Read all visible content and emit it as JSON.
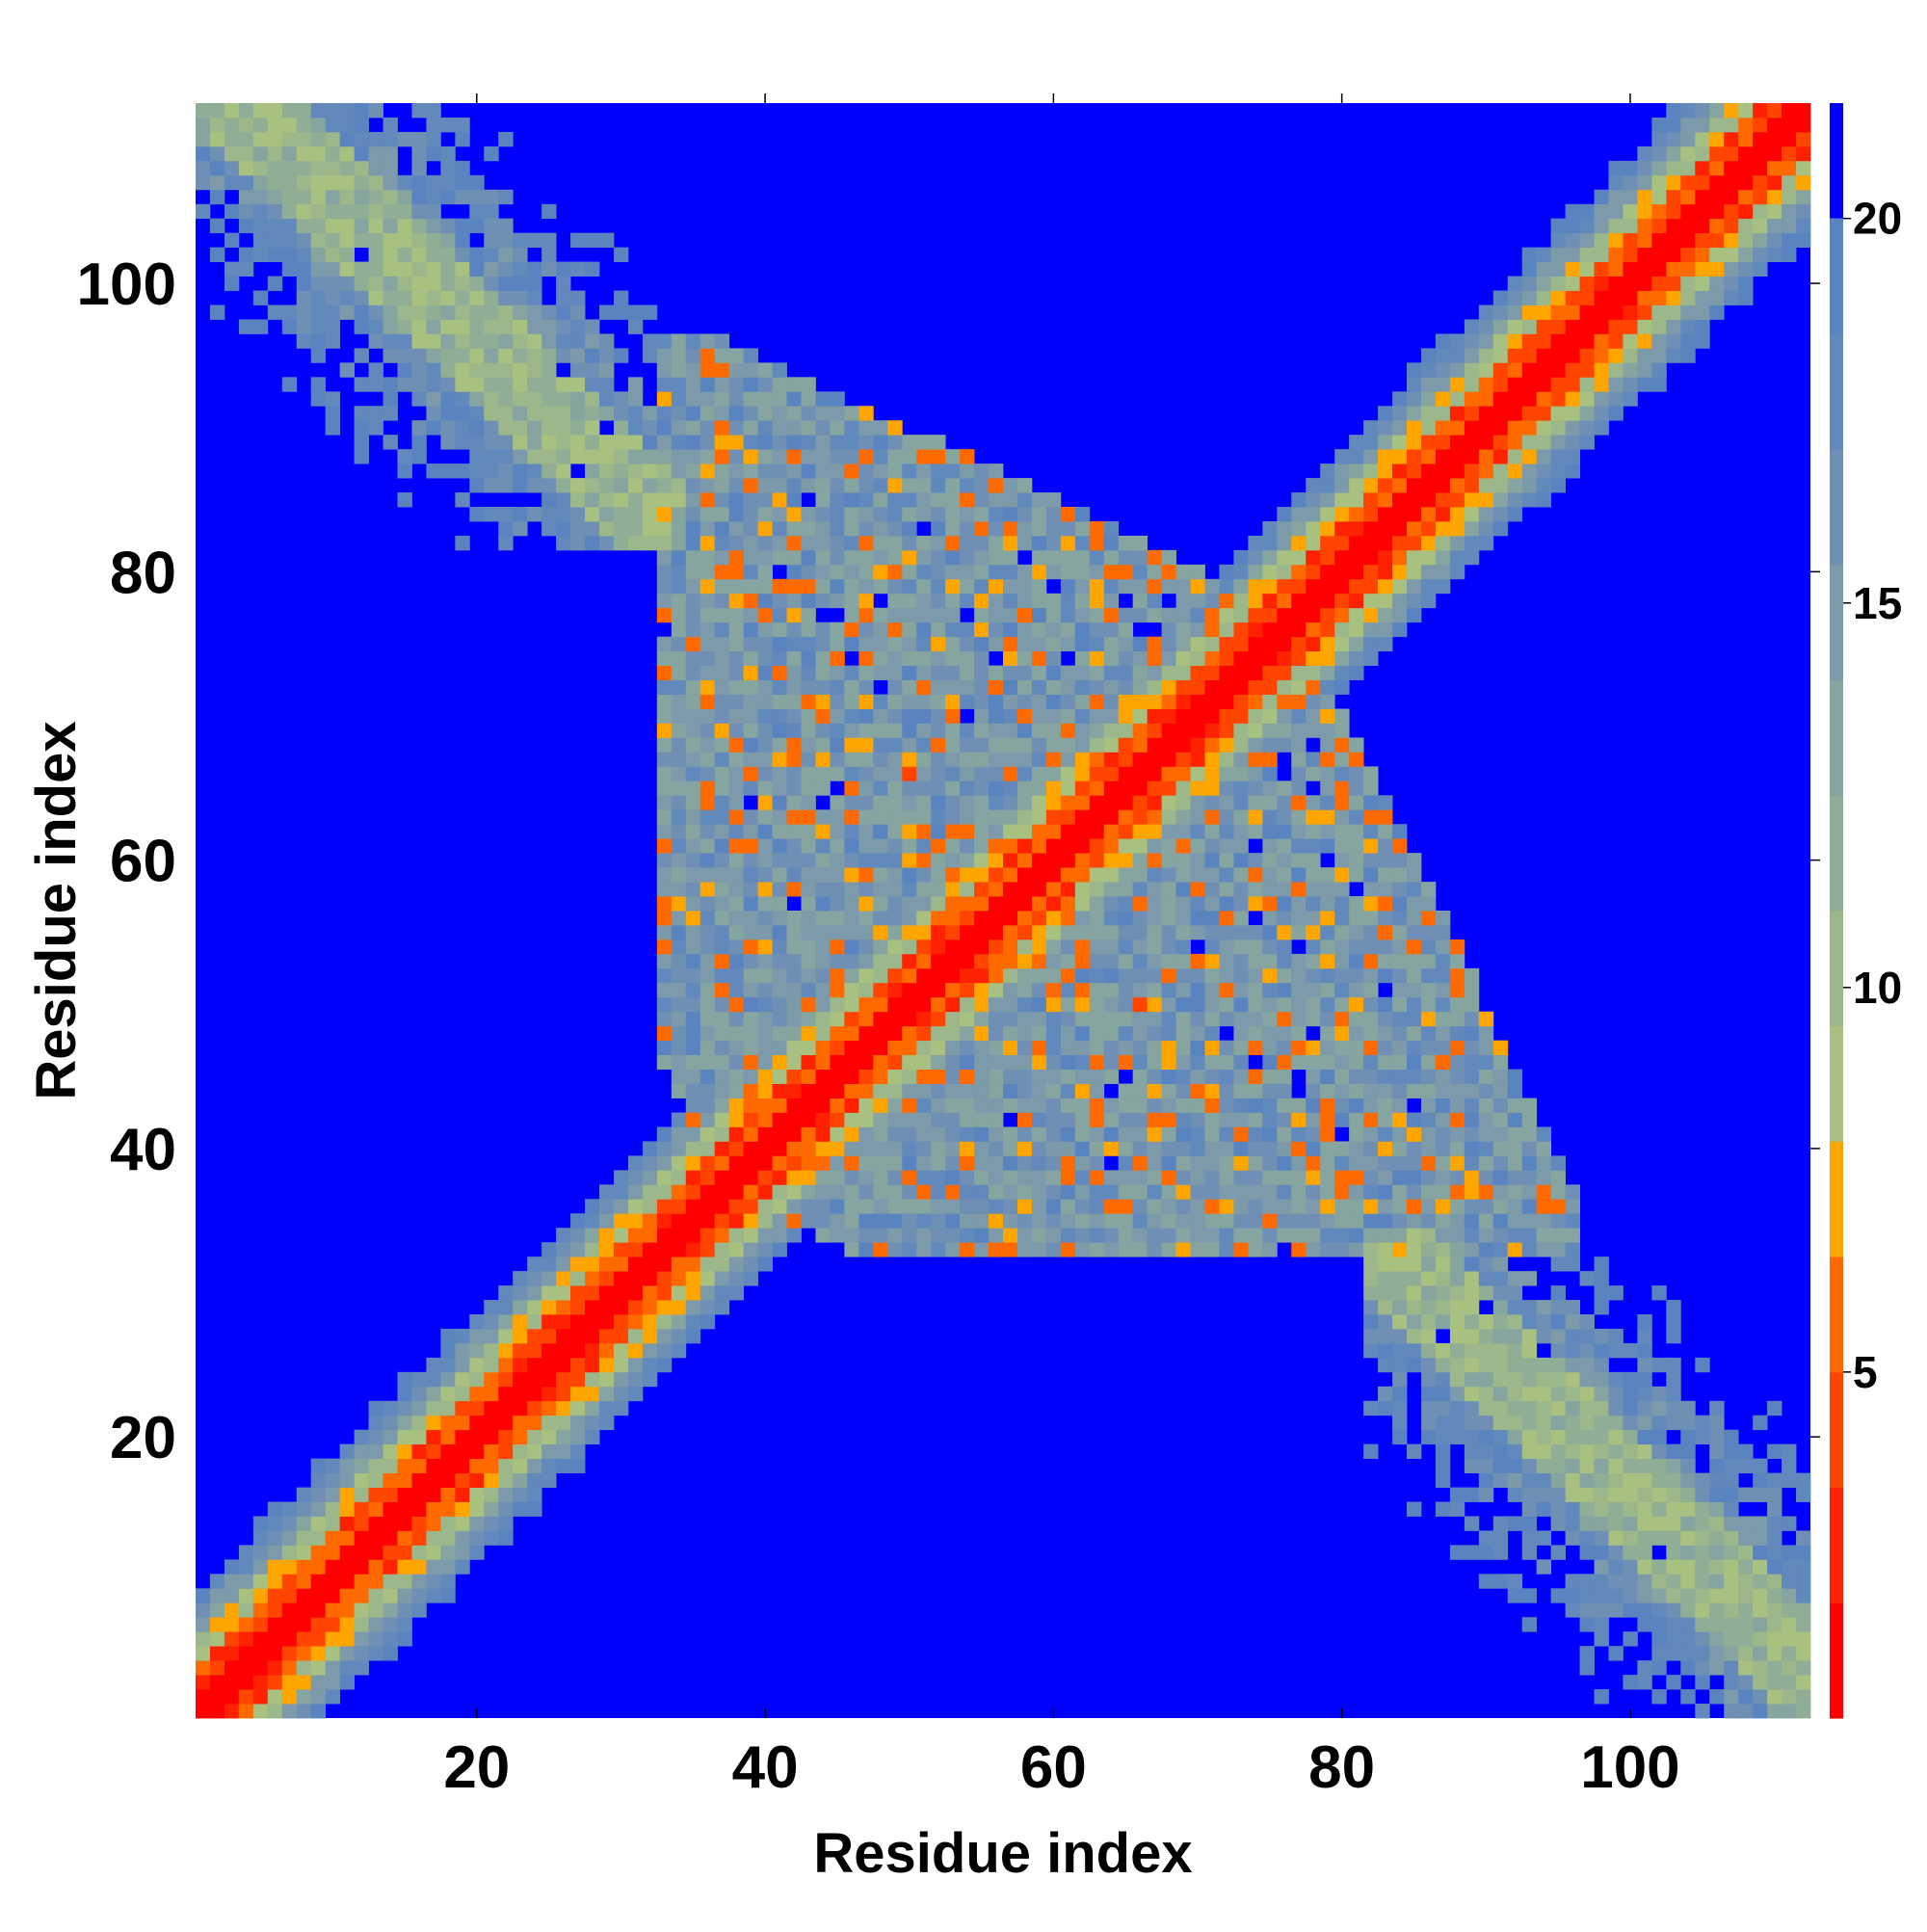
{
  "chart_data": {
    "type": "heatmap",
    "title": "",
    "xlabel": "Residue index",
    "ylabel": "Residue index",
    "n_residues": 112,
    "xlim": [
      0.5,
      112.5
    ],
    "ylim": [
      0.5,
      112.5
    ],
    "x_ticks": [
      20,
      40,
      60,
      80,
      100
    ],
    "y_ticks": [
      20,
      40,
      60,
      80,
      100
    ],
    "x_tick_labels": [
      "20",
      "40",
      "60",
      "80",
      "100"
    ],
    "y_tick_labels": [
      "20",
      "40",
      "60",
      "80",
      "100"
    ],
    "colorbar": {
      "range": [
        0.5,
        21.5
      ],
      "ticks": [
        5,
        10,
        15,
        20
      ],
      "tick_labels": [
        "5",
        "10",
        "15",
        "20"
      ],
      "above_max_color": "#0000ff",
      "levels": [
        {
          "max": 2.0,
          "color": "#ff0000"
        },
        {
          "max": 3.5,
          "color": "#ff2200"
        },
        {
          "max": 5.0,
          "color": "#ff4500"
        },
        {
          "max": 6.5,
          "color": "#ff6a00"
        },
        {
          "max": 8.0,
          "color": "#ffa500"
        },
        {
          "max": 9.5,
          "color": "#a8c080"
        },
        {
          "max": 11.0,
          "color": "#9cb78a"
        },
        {
          "max": 12.5,
          "color": "#90ae95"
        },
        {
          "max": 14.0,
          "color": "#86a4a0"
        },
        {
          "max": 15.5,
          "color": "#7c9aaa"
        },
        {
          "max": 17.0,
          "color": "#6f90b4"
        },
        {
          "max": 18.5,
          "color": "#6289bc"
        },
        {
          "max": 20.0,
          "color": "#5a84c0"
        }
      ]
    },
    "description_values": {
      "diagonal_band_width": 8,
      "antidiagonal_contact_regions": [
        {
          "i": [
            1,
            32
          ],
          "j": [
            85,
            112
          ]
        },
        {
          "i": [
            80,
            112
          ],
          "j": [
            1,
            32
          ]
        }
      ],
      "central_cloud": {
        "i": [
          33,
          95
        ],
        "j": [
          33,
          95
        ]
      },
      "background_value": 21.5
    }
  }
}
